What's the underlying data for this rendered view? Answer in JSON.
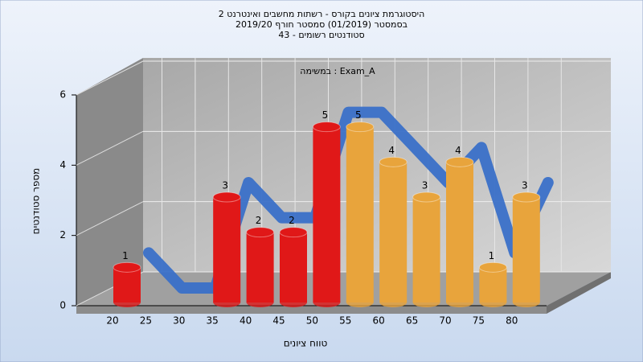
{
  "chart_data": {
    "type": "bar3d",
    "title": "היסטוגרמת ציונים בקורס - רשתות מחשבים ואינטרנט 2",
    "subtitle": "בסמסטר  (01/2019)  סמסטר חורף 2019/20",
    "subtitle2": "סטודנטים רשומים - 43",
    "annotation": "במשימה : Exam_A",
    "x_label": "טווח ציונים",
    "y_label": "מספר סטודנטים",
    "categories": [
      "20",
      "25",
      "30",
      "35",
      "40",
      "45",
      "50",
      "55",
      "60",
      "65",
      "70",
      "75",
      "80"
    ],
    "values": [
      1,
      0,
      0,
      3,
      2,
      2,
      5,
      5,
      4,
      3,
      4,
      1,
      3
    ],
    "colors": [
      "#e01818",
      "#e01818",
      "#e01818",
      "#e01818",
      "#e01818",
      "#e01818",
      "#e01818",
      "#e8a43c",
      "#e8a43c",
      "#e8a43c",
      "#e8a43c",
      "#e8a43c",
      "#e8a43c"
    ],
    "trend_color": "#3a70c8",
    "ylim": [
      0,
      6
    ],
    "yticks": [
      0,
      2,
      4,
      6
    ],
    "grid": true
  }
}
